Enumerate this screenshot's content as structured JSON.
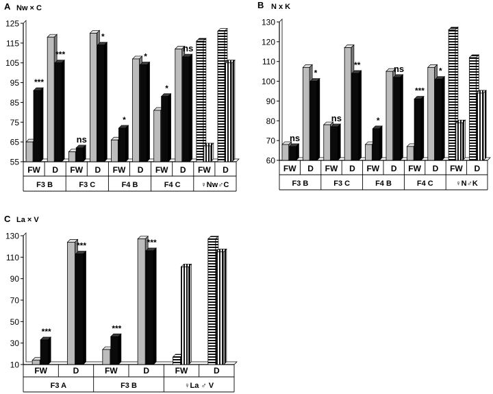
{
  "chart_data": [
    {
      "type": "bar",
      "panel": "A",
      "title": "Nw × C",
      "ylim": [
        55,
        125
      ],
      "yticks": [
        55,
        65,
        75,
        85,
        95,
        105,
        115,
        125
      ],
      "groups": [
        {
          "label": "F3 B",
          "cats": [
            {
              "label": "FW",
              "series": [
                {
                  "style": "gray",
                  "value": 65
                },
                {
                  "style": "black",
                  "value": 91
                }
              ],
              "sig": "***"
            },
            {
              "label": "D",
              "series": [
                {
                  "style": "gray",
                  "value": 118
                },
                {
                  "style": "black",
                  "value": 105
                }
              ],
              "sig": "***"
            }
          ]
        },
        {
          "label": "F3 C",
          "cats": [
            {
              "label": "FW",
              "series": [
                {
                  "style": "gray",
                  "value": 60
                },
                {
                  "style": "black",
                  "value": 62
                }
              ],
              "sig": "ns"
            },
            {
              "label": "D",
              "series": [
                {
                  "style": "gray",
                  "value": 120
                },
                {
                  "style": "black",
                  "value": 114
                }
              ],
              "sig": "*"
            }
          ]
        },
        {
          "label": "F4 B",
          "cats": [
            {
              "label": "FW",
              "series": [
                {
                  "style": "gray",
                  "value": 66
                },
                {
                  "style": "black",
                  "value": 72
                }
              ],
              "sig": "*"
            },
            {
              "label": "D",
              "series": [
                {
                  "style": "gray",
                  "value": 107
                },
                {
                  "style": "black",
                  "value": 104
                }
              ],
              "sig": "*"
            }
          ]
        },
        {
          "label": "F4 C",
          "cats": [
            {
              "label": "FW",
              "series": [
                {
                  "style": "gray",
                  "value": 81
                },
                {
                  "style": "black",
                  "value": 88
                }
              ],
              "sig": "*"
            },
            {
              "label": "D",
              "series": [
                {
                  "style": "gray",
                  "value": 112
                },
                {
                  "style": "black",
                  "value": 108
                }
              ],
              "sig": "ns"
            }
          ]
        },
        {
          "label": "♀Nw♂C",
          "cats": [
            {
              "label": "FW",
              "series": [
                {
                  "style": "hstripe",
                  "value": 116
                },
                {
                  "style": "vstripe",
                  "value": 63
                }
              ],
              "sig": ""
            },
            {
              "label": "D",
              "series": [
                {
                  "style": "hstripe",
                  "value": 121
                },
                {
                  "style": "vstripe",
                  "value": 105
                }
              ],
              "sig": ""
            }
          ]
        }
      ]
    },
    {
      "type": "bar",
      "panel": "B",
      "title": "N x K",
      "ylim": [
        60,
        130
      ],
      "yticks": [
        60,
        70,
        80,
        90,
        100,
        110,
        120,
        130
      ],
      "groups": [
        {
          "label": "F3 B",
          "cats": [
            {
              "label": "FW",
              "series": [
                {
                  "style": "gray",
                  "value": 68
                },
                {
                  "style": "black",
                  "value": 67
                }
              ],
              "sig": "ns"
            },
            {
              "label": "D",
              "series": [
                {
                  "style": "gray",
                  "value": 107
                },
                {
                  "style": "black",
                  "value": 100
                }
              ],
              "sig": "*"
            }
          ]
        },
        {
          "label": "F3 C",
          "cats": [
            {
              "label": "FW",
              "series": [
                {
                  "style": "gray",
                  "value": 78
                },
                {
                  "style": "black",
                  "value": 77
                }
              ],
              "sig": "ns"
            },
            {
              "label": "D",
              "series": [
                {
                  "style": "gray",
                  "value": 117
                },
                {
                  "style": "black",
                  "value": 104
                }
              ],
              "sig": "**"
            }
          ]
        },
        {
          "label": "F4 B",
          "cats": [
            {
              "label": "FW",
              "series": [
                {
                  "style": "gray",
                  "value": 68
                },
                {
                  "style": "black",
                  "value": 76
                }
              ],
              "sig": "*"
            },
            {
              "label": "D",
              "series": [
                {
                  "style": "gray",
                  "value": 105
                },
                {
                  "style": "black",
                  "value": 102
                }
              ],
              "sig": "ns"
            }
          ]
        },
        {
          "label": "F4 C",
          "cats": [
            {
              "label": "FW",
              "series": [
                {
                  "style": "gray",
                  "value": 67
                },
                {
                  "style": "black",
                  "value": 91
                }
              ],
              "sig": "***"
            },
            {
              "label": "D",
              "series": [
                {
                  "style": "gray",
                  "value": 107
                },
                {
                  "style": "black",
                  "value": 101
                }
              ],
              "sig": "*"
            }
          ]
        },
        {
          "label": "♀N♂K",
          "cats": [
            {
              "label": "FW",
              "series": [
                {
                  "style": "hstripe",
                  "value": 126
                },
                {
                  "style": "vstripe",
                  "value": 79
                }
              ],
              "sig": ""
            },
            {
              "label": "D",
              "series": [
                {
                  "style": "hstripe",
                  "value": 112
                },
                {
                  "style": "vstripe",
                  "value": 94
                }
              ],
              "sig": ""
            }
          ]
        }
      ]
    },
    {
      "type": "bar",
      "panel": "C",
      "title": "La × V",
      "ylim": [
        10,
        130
      ],
      "yticks": [
        10,
        30,
        50,
        70,
        90,
        110,
        130
      ],
      "groups": [
        {
          "label": "F3 A",
          "cats": [
            {
              "label": "FW",
              "series": [
                {
                  "style": "gray",
                  "value": 14
                },
                {
                  "style": "black",
                  "value": 33
                }
              ],
              "sig": "***"
            },
            {
              "label": "D",
              "series": [
                {
                  "style": "gray",
                  "value": 124
                },
                {
                  "style": "black",
                  "value": 113
                }
              ],
              "sig": "***"
            }
          ]
        },
        {
          "label": "F3 B",
          "cats": [
            {
              "label": "FW",
              "series": [
                {
                  "style": "gray",
                  "value": 24
                },
                {
                  "style": "black",
                  "value": 36
                }
              ],
              "sig": "***"
            },
            {
              "label": "D",
              "series": [
                {
                  "style": "gray",
                  "value": 127
                },
                {
                  "style": "black",
                  "value": 116
                }
              ],
              "sig": "***"
            }
          ]
        },
        {
          "label": "♀La ♂ V",
          "cats": [
            {
              "label": "FW",
              "series": [
                {
                  "style": "hstripe",
                  "value": 17
                },
                {
                  "style": "vstripe",
                  "value": 101
                }
              ],
              "sig": ""
            },
            {
              "label": "D",
              "series": [
                {
                  "style": "hstripe",
                  "value": 127
                },
                {
                  "style": "vstripe",
                  "value": 115
                }
              ],
              "sig": ""
            }
          ]
        }
      ]
    }
  ]
}
